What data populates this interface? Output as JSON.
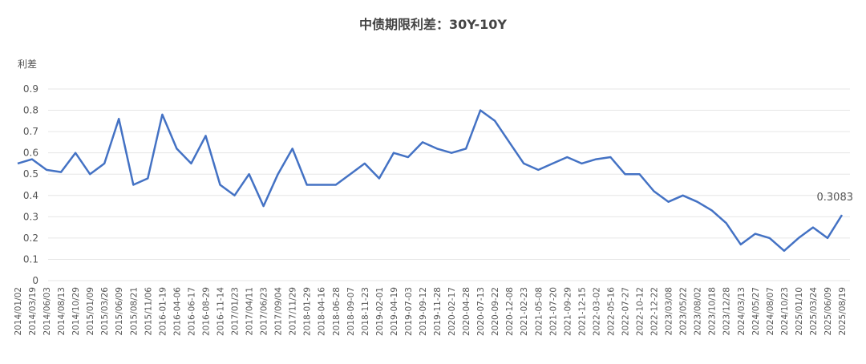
{
  "chart_data": {
    "type": "line",
    "title": "中债期限利差：30Y-10Y",
    "y_label": "利差",
    "categories": [
      "2014/01/02",
      "2014/03/19",
      "2014/06/03",
      "2014/08/13",
      "2014/10/29",
      "2015/01/09",
      "2015/03/26",
      "2015/06/09",
      "2015/08/21",
      "2015/11/06",
      "2016-01-19",
      "2016-04-06",
      "2016-06-17",
      "2016-08-29",
      "2016-11-14",
      "2017/01/23",
      "2017/04/11",
      "2017/06/23",
      "2017/09/04",
      "2017/11/29",
      "2018-01-29",
      "2018-04-16",
      "2018-06-28",
      "2018-09-07",
      "2018-11-23",
      "2019-02-01",
      "2019-04-19",
      "2019-07-03",
      "2019-09-12",
      "2019-11-28",
      "2020-02-17",
      "2020-04-28",
      "2020-07-13",
      "2020-09-22",
      "2020-12-08",
      "2021-02-23",
      "2021-05-08",
      "2021-07-20",
      "2021-09-29",
      "2021-12-15",
      "2022-03-02",
      "2022-05-16",
      "2022-07-27",
      "2022-10-12",
      "2022-12-22",
      "2023/03/08",
      "2023/05/22",
      "2023/08/02",
      "2023/10/18",
      "2023/12/28",
      "2024/03/13",
      "2024/05/27",
      "2024/08/07",
      "2024/10/23",
      "2025/01/10",
      "2025/03/24",
      "2025/06/09",
      "2025/08/19"
    ],
    "values": [
      0.55,
      0.57,
      0.52,
      0.51,
      0.6,
      0.5,
      0.55,
      0.76,
      0.45,
      0.48,
      0.78,
      0.62,
      0.55,
      0.68,
      0.45,
      0.4,
      0.5,
      0.35,
      0.5,
      0.62,
      0.45,
      0.45,
      0.45,
      0.5,
      0.55,
      0.48,
      0.6,
      0.58,
      0.65,
      0.62,
      0.6,
      0.62,
      0.8,
      0.75,
      0.65,
      0.55,
      0.52,
      0.55,
      0.58,
      0.55,
      0.57,
      0.58,
      0.5,
      0.5,
      0.42,
      0.37,
      0.4,
      0.37,
      0.33,
      0.27,
      0.17,
      0.22,
      0.2,
      0.14,
      0.2,
      0.25,
      0.2,
      0.3083
    ],
    "color": "#4472c4",
    "ylim": [
      0,
      0.9
    ],
    "yticks": [
      0,
      0.1,
      0.2,
      0.3,
      0.4,
      0.5,
      0.6,
      0.7,
      0.8,
      0.9
    ],
    "grid": true
  }
}
